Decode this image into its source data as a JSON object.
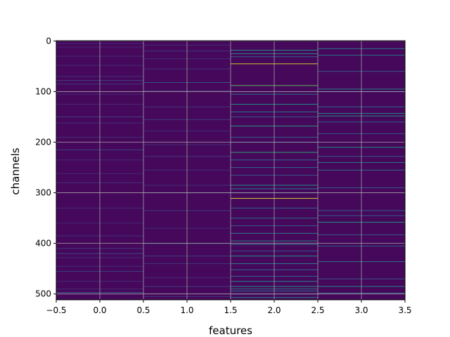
{
  "chart_data": {
    "type": "heatmap",
    "title": "",
    "xlabel": "features",
    "ylabel": "channels",
    "xlim": [
      -0.5,
      3.5
    ],
    "ylim": [
      511.5,
      -0.5
    ],
    "y_inverted": true,
    "grid": true,
    "colormap": "viridis",
    "n_rows": 512,
    "n_cols": 4,
    "x_ticks": [
      {
        "value": -0.5,
        "label": "−0.5"
      },
      {
        "value": 0.0,
        "label": "0.0"
      },
      {
        "value": 0.5,
        "label": "0.5"
      },
      {
        "value": 1.0,
        "label": "1.0"
      },
      {
        "value": 1.5,
        "label": "1.5"
      },
      {
        "value": 2.0,
        "label": "2.0"
      },
      {
        "value": 2.5,
        "label": "2.5"
      },
      {
        "value": 3.0,
        "label": "3.0"
      },
      {
        "value": 3.5,
        "label": "3.5"
      }
    ],
    "y_ticks": [
      {
        "value": 0,
        "label": "0"
      },
      {
        "value": 100,
        "label": "100"
      },
      {
        "value": 200,
        "label": "200"
      },
      {
        "value": 300,
        "label": "300"
      },
      {
        "value": 400,
        "label": "400"
      },
      {
        "value": 500,
        "label": "500"
      }
    ],
    "background_value": 0.02,
    "columns": [
      {
        "feature": 0,
        "highlights": [
          {
            "channel": 5,
            "value": 0.12
          },
          {
            "channel": 12,
            "value": 0.1
          },
          {
            "channel": 30,
            "value": 0.14
          },
          {
            "channel": 48,
            "value": 0.12
          },
          {
            "channel": 70,
            "value": 0.16
          },
          {
            "channel": 78,
            "value": 0.22
          },
          {
            "channel": 85,
            "value": 0.18
          },
          {
            "channel": 105,
            "value": 0.14
          },
          {
            "channel": 125,
            "value": 0.12
          },
          {
            "channel": 150,
            "value": 0.2
          },
          {
            "channel": 162,
            "value": 0.14
          },
          {
            "channel": 190,
            "value": 0.16
          },
          {
            "channel": 215,
            "value": 0.22
          },
          {
            "channel": 235,
            "value": 0.14
          },
          {
            "channel": 262,
            "value": 0.12
          },
          {
            "channel": 280,
            "value": 0.16
          },
          {
            "channel": 330,
            "value": 0.14
          },
          {
            "channel": 360,
            "value": 0.12
          },
          {
            "channel": 385,
            "value": 0.16
          },
          {
            "channel": 410,
            "value": 0.18
          },
          {
            "channel": 420,
            "value": 0.24
          },
          {
            "channel": 428,
            "value": 0.14
          },
          {
            "channel": 445,
            "value": 0.16
          },
          {
            "channel": 455,
            "value": 0.2
          },
          {
            "channel": 475,
            "value": 0.14
          },
          {
            "channel": 490,
            "value": 0.12
          },
          {
            "channel": 497,
            "value": 0.32
          }
        ]
      },
      {
        "feature": 1,
        "highlights": [
          {
            "channel": 8,
            "value": 0.14
          },
          {
            "channel": 20,
            "value": 0.18
          },
          {
            "channel": 35,
            "value": 0.14
          },
          {
            "channel": 55,
            "value": 0.16
          },
          {
            "channel": 82,
            "value": 0.28
          },
          {
            "channel": 98,
            "value": 0.14
          },
          {
            "channel": 130,
            "value": 0.16
          },
          {
            "channel": 155,
            "value": 0.2
          },
          {
            "channel": 178,
            "value": 0.14
          },
          {
            "channel": 205,
            "value": 0.16
          },
          {
            "channel": 228,
            "value": 0.18
          },
          {
            "channel": 255,
            "value": 0.14
          },
          {
            "channel": 285,
            "value": 0.16
          },
          {
            "channel": 300,
            "value": 0.14
          },
          {
            "channel": 335,
            "value": 0.18
          },
          {
            "channel": 370,
            "value": 0.14
          },
          {
            "channel": 400,
            "value": 0.34
          },
          {
            "channel": 425,
            "value": 0.2
          },
          {
            "channel": 440,
            "value": 0.16
          },
          {
            "channel": 468,
            "value": 0.14
          },
          {
            "channel": 485,
            "value": 0.2
          },
          {
            "channel": 505,
            "value": 0.16
          }
        ]
      },
      {
        "feature": 2,
        "highlights": [
          {
            "channel": 18,
            "value": 0.55
          },
          {
            "channel": 25,
            "value": 0.5
          },
          {
            "channel": 31,
            "value": 0.35
          },
          {
            "channel": 45,
            "value": 0.95
          },
          {
            "channel": 88,
            "value": 0.75
          },
          {
            "channel": 105,
            "value": 0.4
          },
          {
            "channel": 125,
            "value": 0.55
          },
          {
            "channel": 140,
            "value": 0.45
          },
          {
            "channel": 150,
            "value": 0.3
          },
          {
            "channel": 168,
            "value": 0.6
          },
          {
            "channel": 190,
            "value": 0.35
          },
          {
            "channel": 200,
            "value": 0.3
          },
          {
            "channel": 220,
            "value": 0.65
          },
          {
            "channel": 235,
            "value": 0.4
          },
          {
            "channel": 250,
            "value": 0.35
          },
          {
            "channel": 265,
            "value": 0.3
          },
          {
            "channel": 285,
            "value": 0.55
          },
          {
            "channel": 292,
            "value": 0.45
          },
          {
            "channel": 300,
            "value": 0.35
          },
          {
            "channel": 311,
            "value": 0.95
          },
          {
            "channel": 330,
            "value": 0.35
          },
          {
            "channel": 350,
            "value": 0.4
          },
          {
            "channel": 365,
            "value": 0.3
          },
          {
            "channel": 380,
            "value": 0.45
          },
          {
            "channel": 395,
            "value": 0.5
          },
          {
            "channel": 402,
            "value": 0.4
          },
          {
            "channel": 415,
            "value": 0.3
          },
          {
            "channel": 425,
            "value": 0.55
          },
          {
            "channel": 440,
            "value": 0.45
          },
          {
            "channel": 452,
            "value": 0.4
          },
          {
            "channel": 465,
            "value": 0.35
          },
          {
            "channel": 475,
            "value": 0.5
          },
          {
            "channel": 485,
            "value": 0.55
          },
          {
            "channel": 490,
            "value": 0.45
          },
          {
            "channel": 494,
            "value": 0.4
          },
          {
            "channel": 500,
            "value": 0.3
          },
          {
            "channel": 507,
            "value": 0.5
          }
        ]
      },
      {
        "feature": 3,
        "highlights": [
          {
            "channel": 15,
            "value": 0.45
          },
          {
            "channel": 28,
            "value": 0.4
          },
          {
            "channel": 60,
            "value": 0.3
          },
          {
            "channel": 95,
            "value": 0.5
          },
          {
            "channel": 100,
            "value": 0.35
          },
          {
            "channel": 130,
            "value": 0.4
          },
          {
            "channel": 143,
            "value": 0.5
          },
          {
            "channel": 148,
            "value": 0.55
          },
          {
            "channel": 160,
            "value": 0.35
          },
          {
            "channel": 183,
            "value": 0.3
          },
          {
            "channel": 210,
            "value": 0.55
          },
          {
            "channel": 228,
            "value": 0.3
          },
          {
            "channel": 240,
            "value": 0.45
          },
          {
            "channel": 255,
            "value": 0.4
          },
          {
            "channel": 290,
            "value": 0.3
          },
          {
            "channel": 335,
            "value": 0.35
          },
          {
            "channel": 345,
            "value": 0.3
          },
          {
            "channel": 358,
            "value": 0.55
          },
          {
            "channel": 383,
            "value": 0.3
          },
          {
            "channel": 405,
            "value": 0.35
          },
          {
            "channel": 436,
            "value": 0.45
          },
          {
            "channel": 470,
            "value": 0.3
          },
          {
            "channel": 485,
            "value": 0.5
          },
          {
            "channel": 498,
            "value": 0.35
          }
        ]
      }
    ]
  }
}
